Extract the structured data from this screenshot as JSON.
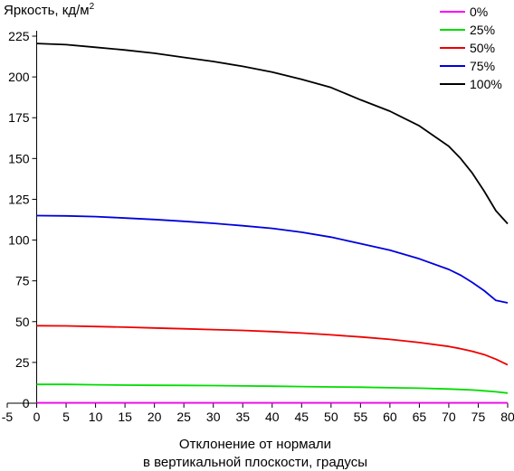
{
  "chart_data": {
    "type": "line",
    "ylabel": "Яркость, кд/м",
    "ylabel_superscript": "2",
    "xlabel_line1": "Отклонение от нормали",
    "xlabel_line2": "в вертикальной плоскости, градусы",
    "xlim": [
      -5,
      80
    ],
    "ylim": [
      0,
      225
    ],
    "xticks": [
      -5,
      0,
      5,
      10,
      15,
      20,
      25,
      30,
      35,
      40,
      45,
      50,
      55,
      60,
      65,
      70,
      75,
      80
    ],
    "yticks": [
      0,
      25,
      50,
      75,
      100,
      125,
      150,
      175,
      200,
      225
    ],
    "grid": false,
    "legend_position": "top-right",
    "x": [
      0,
      5,
      10,
      15,
      20,
      25,
      30,
      35,
      40,
      45,
      50,
      55,
      60,
      65,
      70,
      72,
      74,
      76,
      78,
      80
    ],
    "series": [
      {
        "name": "0%",
        "color": "#ff00ff",
        "values": [
          0.3,
          0.3,
          0.3,
          0.3,
          0.3,
          0.3,
          0.3,
          0.3,
          0.3,
          0.3,
          0.3,
          0.3,
          0.3,
          0.3,
          0.3,
          0.3,
          0.3,
          0.3,
          0.3,
          0.3
        ]
      },
      {
        "name": "25%",
        "color": "#00dd00",
        "values": [
          11.5,
          11.5,
          11.3,
          11.1,
          11.0,
          10.9,
          10.8,
          10.6,
          10.4,
          10.2,
          10.0,
          9.8,
          9.5,
          9.2,
          8.7,
          8.4,
          8.1,
          7.6,
          7.0,
          6.2
        ]
      },
      {
        "name": "50%",
        "color": "#ee0000",
        "values": [
          47.5,
          47.4,
          47.0,
          46.6,
          46.1,
          45.6,
          45.1,
          44.6,
          43.9,
          43.0,
          41.9,
          40.6,
          39.1,
          37.2,
          34.8,
          33.4,
          31.8,
          29.8,
          27.0,
          23.5
        ]
      },
      {
        "name": "75%",
        "color": "#0000dd",
        "values": [
          115,
          114.8,
          114.4,
          113.5,
          112.6,
          111.5,
          110.3,
          108.8,
          107.2,
          104.8,
          101.8,
          97.8,
          93.8,
          88.5,
          82.0,
          78.5,
          74.0,
          69.0,
          63.0,
          61.5
        ]
      },
      {
        "name": "100%",
        "color": "#000000",
        "values": [
          220.5,
          219.8,
          218.2,
          216.5,
          214.5,
          212.0,
          209.5,
          206.5,
          203.0,
          198.5,
          193.5,
          186.0,
          179.0,
          170.0,
          157.5,
          150.0,
          141.0,
          130.0,
          118.0,
          110.0
        ]
      }
    ]
  }
}
